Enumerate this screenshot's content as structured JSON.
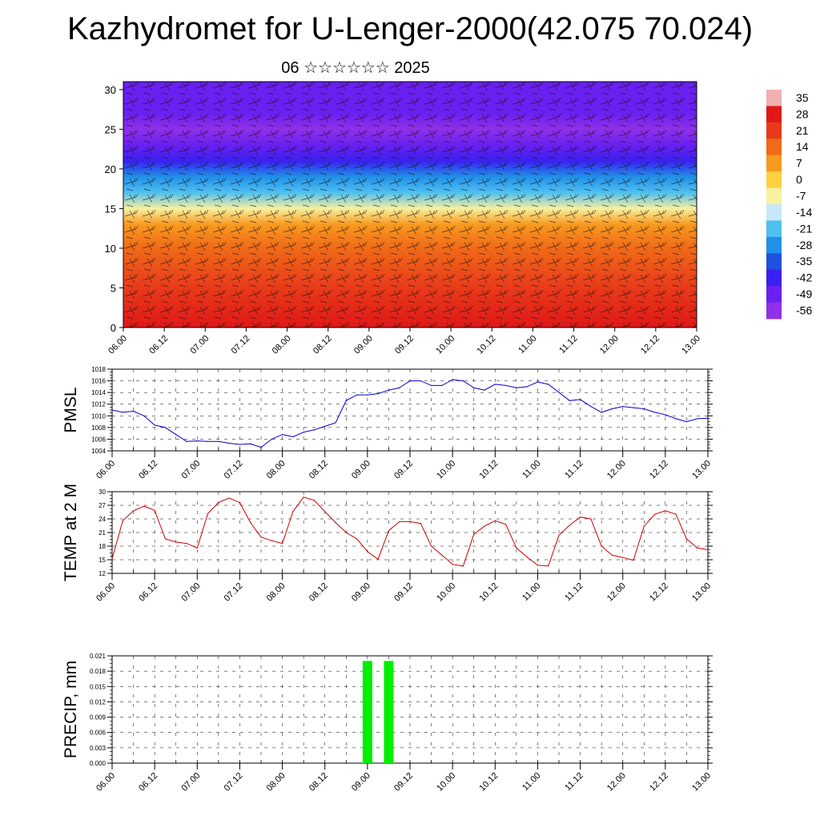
{
  "title": "Kazhydromet for U-Lenger-2000(42.075 70.024)",
  "subtitle": "06 ☆☆☆☆☆☆ 2025",
  "time_labels": [
    "06.00",
    "06.12",
    "07.00",
    "07.12",
    "08.00",
    "08.12",
    "09.00",
    "09.12",
    "10.00",
    "10.12",
    "11.00",
    "11.12",
    "12.00",
    "12.12",
    "13.00"
  ],
  "chart_data": [
    {
      "type": "heatmap",
      "name": "vertical-cross-section",
      "x_tick_labels": [
        "06.00",
        "06.12",
        "07.00",
        "07.12",
        "08.00",
        "08.12",
        "09.00",
        "09.12",
        "10.00",
        "10.12",
        "11.00",
        "11.12",
        "12.00",
        "12.12",
        "13.00"
      ],
      "y_tick_labels": [
        "0",
        "5",
        "10",
        "15",
        "20",
        "25",
        "30"
      ],
      "ylim": [
        0,
        31
      ],
      "colorbar_labels": [
        "35",
        "28",
        "21",
        "14",
        "7",
        "0",
        "-7",
        "-14",
        "-21",
        "-28",
        "-35",
        "-42",
        "-49",
        "-56"
      ],
      "colorbar_colors": [
        "#f0b0b0",
        "#e01818",
        "#e83a1a",
        "#f06a18",
        "#f89a20",
        "#ffd040",
        "#f8f0a0",
        "#c8e8f8",
        "#50c0f0",
        "#2090e8",
        "#2050e0",
        "#3a20f0",
        "#6a20f0",
        "#9030e8"
      ],
      "profile_levels": [
        0,
        5,
        10,
        13,
        15,
        17,
        19,
        21,
        23,
        25,
        27,
        31
      ],
      "profile_values": [
        30,
        24,
        14,
        6,
        -8,
        -20,
        -30,
        -40,
        -52,
        -60,
        -52,
        -46
      ],
      "wind_barbs": true
    },
    {
      "type": "line",
      "name": "pmsl",
      "ylabel": "PMSL",
      "ylim": [
        1004,
        1018
      ],
      "y_tick_labels": [
        "1004",
        "1006",
        "1008",
        "1010",
        "1012",
        "1014",
        "1016",
        "1018"
      ],
      "x_tick_labels": [
        "06.00",
        "06.12",
        "07.00",
        "07.12",
        "08.00",
        "08.12",
        "09.00",
        "09.12",
        "10.00",
        "10.12",
        "11.00",
        "11.12",
        "12.00",
        "12.12",
        "13.00"
      ],
      "color": "#0000cc",
      "x": [
        0,
        3,
        6,
        9,
        12,
        15,
        18,
        21,
        24,
        27,
        30,
        33,
        36,
        39,
        42,
        45,
        48,
        51,
        54,
        57,
        60,
        63,
        66,
        69,
        72,
        75,
        78,
        81,
        84,
        87,
        90,
        93,
        96,
        99,
        102,
        105,
        108,
        111,
        114,
        117,
        120,
        123,
        126,
        129,
        132,
        135,
        138,
        141,
        144,
        147,
        150,
        153,
        156,
        159,
        162,
        165,
        168
      ],
      "values": [
        1011.0,
        1010.6,
        1010.8,
        1010.0,
        1008.4,
        1008.0,
        1006.8,
        1005.6,
        1005.7,
        1005.6,
        1005.6,
        1005.3,
        1005.1,
        1005.2,
        1004.6,
        1006.0,
        1006.8,
        1006.4,
        1007.2,
        1007.6,
        1008.2,
        1008.8,
        1012.6,
        1013.6,
        1013.6,
        1013.8,
        1014.4,
        1014.8,
        1016.0,
        1016.0,
        1015.2,
        1015.2,
        1016.2,
        1016.0,
        1014.8,
        1014.4,
        1015.4,
        1015.2,
        1014.8,
        1015.0,
        1015.8,
        1015.4,
        1014.0,
        1012.6,
        1012.8,
        1011.6,
        1010.6,
        1011.2,
        1011.6,
        1011.4,
        1011.2,
        1010.6,
        1010.2,
        1009.5,
        1009.0,
        1009.5,
        1009.6
      ]
    },
    {
      "type": "line",
      "name": "temp",
      "ylabel": "TEMP at 2 M",
      "ylim": [
        12,
        30
      ],
      "y_tick_labels": [
        "12",
        "15",
        "18",
        "21",
        "24",
        "27",
        "30"
      ],
      "x_tick_labels": [
        "06.00",
        "06.12",
        "07.00",
        "07.12",
        "08.00",
        "08.12",
        "09.00",
        "09.12",
        "10.00",
        "10.12",
        "11.00",
        "11.12",
        "12.00",
        "12.12",
        "13.00"
      ],
      "color": "#cc0000",
      "x": [
        0,
        3,
        6,
        9,
        12,
        15,
        18,
        21,
        24,
        27,
        30,
        33,
        36,
        39,
        42,
        45,
        48,
        51,
        54,
        57,
        60,
        63,
        66,
        69,
        72,
        75,
        78,
        81,
        84,
        87,
        90,
        93,
        96,
        99,
        102,
        105,
        108,
        111,
        114,
        117,
        120,
        123,
        126,
        129,
        132,
        135,
        138,
        141,
        144,
        147,
        150,
        153,
        156,
        159,
        162,
        165,
        168
      ],
      "values": [
        15.2,
        23.6,
        25.8,
        26.8,
        25.9,
        19.6,
        18.9,
        18.6,
        17.6,
        25.2,
        27.6,
        28.6,
        27.6,
        23.2,
        20.0,
        19.2,
        18.6,
        25.6,
        28.8,
        28.1,
        25.6,
        23.2,
        21.0,
        19.6,
        16.8,
        15.1,
        21.4,
        23.4,
        23.4,
        23.0,
        18.0,
        16.0,
        14.0,
        13.6,
        20.6,
        22.4,
        23.6,
        22.8,
        17.6,
        15.6,
        13.8,
        13.6,
        20.4,
        22.6,
        24.4,
        24.0,
        18.0,
        16.0,
        15.5,
        14.9,
        22.4,
        25.0,
        25.8,
        25.0,
        19.6,
        17.6,
        17.2
      ]
    },
    {
      "type": "bar",
      "name": "precip",
      "ylabel": "PRECIP, mm",
      "ylim": [
        0,
        0.021
      ],
      "y_tick_labels": [
        "0.000",
        "0.003",
        "0.006",
        "0.009",
        "0.012",
        "0.015",
        "0.018",
        "0.021"
      ],
      "x_tick_labels": [
        "06.00",
        "06.12",
        "07.00",
        "07.12",
        "08.00",
        "08.12",
        "09.00",
        "09.12",
        "10.00",
        "10.12",
        "11.00",
        "11.12",
        "12.00",
        "12.12",
        "13.00"
      ],
      "color": "#00ee00",
      "x": [
        72,
        78
      ],
      "values": [
        0.02,
        0.02
      ]
    }
  ]
}
